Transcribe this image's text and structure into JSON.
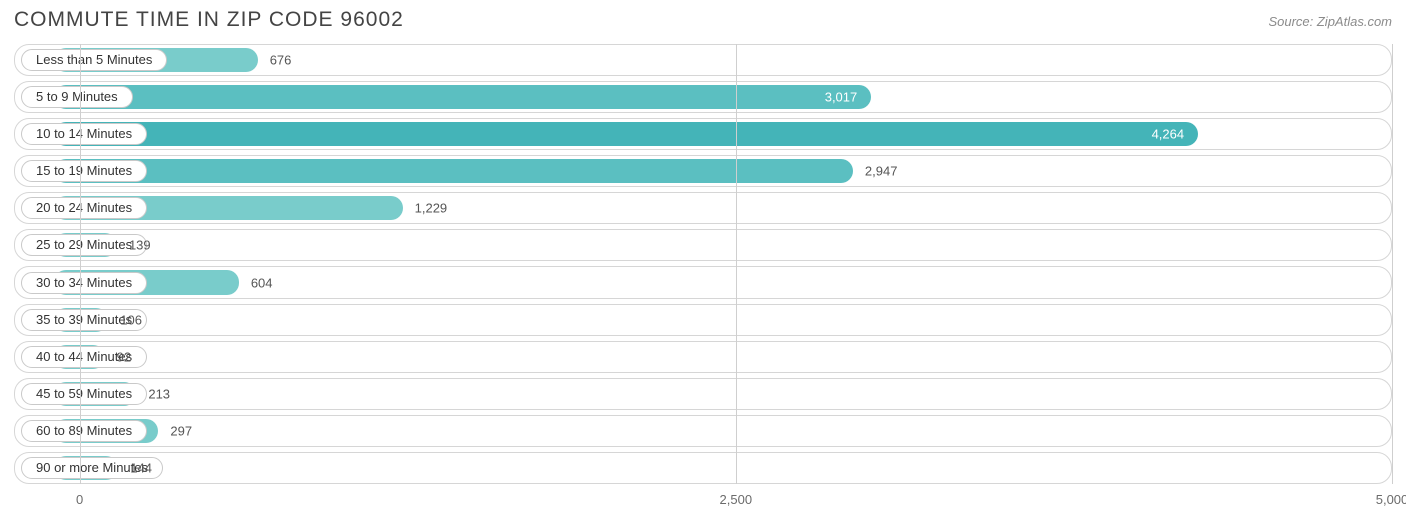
{
  "title": "COMMUTE TIME IN ZIP CODE 96002",
  "source": "Source: ZipAtlas.com",
  "chart": {
    "type": "bar-horizontal",
    "background_color": "#ffffff",
    "track_border_color": "#d6d6d6",
    "grid_color": "#cfcfcf",
    "pill_text_color": "#333333",
    "pill_border_color": "#c9c9c9",
    "title_color": "#444444",
    "source_color": "#8b8b8b",
    "bar_start_pct": 2.8,
    "xlim": [
      -250,
      5000
    ],
    "ticks": [
      {
        "value": 0,
        "label": "0"
      },
      {
        "value": 2500,
        "label": "2,500"
      },
      {
        "value": 5000,
        "label": "5,000"
      }
    ],
    "bars": [
      {
        "label": "Less than 5 Minutes",
        "value": 676,
        "display": "676",
        "color": "#79cccb",
        "value_inside": false,
        "value_color_out": "#555555"
      },
      {
        "label": "5 to 9 Minutes",
        "value": 3017,
        "display": "3,017",
        "color": "#5bbfc1",
        "value_inside": true,
        "value_color_in": "#ffffff"
      },
      {
        "label": "10 to 14 Minutes",
        "value": 4264,
        "display": "4,264",
        "color": "#44b4b8",
        "value_inside": true,
        "value_color_in": "#ffffff"
      },
      {
        "label": "15 to 19 Minutes",
        "value": 2947,
        "display": "2,947",
        "color": "#5bbfc1",
        "value_inside": false,
        "value_color_out": "#555555"
      },
      {
        "label": "20 to 24 Minutes",
        "value": 1229,
        "display": "1,229",
        "color": "#79cccb",
        "value_inside": false,
        "value_color_out": "#555555"
      },
      {
        "label": "25 to 29 Minutes",
        "value": 139,
        "display": "139",
        "color": "#79cccb",
        "value_inside": false,
        "value_color_out": "#555555"
      },
      {
        "label": "30 to 34 Minutes",
        "value": 604,
        "display": "604",
        "color": "#79cccb",
        "value_inside": false,
        "value_color_out": "#555555"
      },
      {
        "label": "35 to 39 Minutes",
        "value": 106,
        "display": "106",
        "color": "#79cccb",
        "value_inside": false,
        "value_color_out": "#555555"
      },
      {
        "label": "40 to 44 Minutes",
        "value": 92,
        "display": "92",
        "color": "#79cccb",
        "value_inside": false,
        "value_color_out": "#555555"
      },
      {
        "label": "45 to 59 Minutes",
        "value": 213,
        "display": "213",
        "color": "#79cccb",
        "value_inside": false,
        "value_color_out": "#555555"
      },
      {
        "label": "60 to 89 Minutes",
        "value": 297,
        "display": "297",
        "color": "#79cccb",
        "value_inside": false,
        "value_color_out": "#555555"
      },
      {
        "label": "90 or more Minutes",
        "value": 144,
        "display": "144",
        "color": "#79cccb",
        "value_inside": false,
        "value_color_out": "#555555"
      }
    ]
  }
}
